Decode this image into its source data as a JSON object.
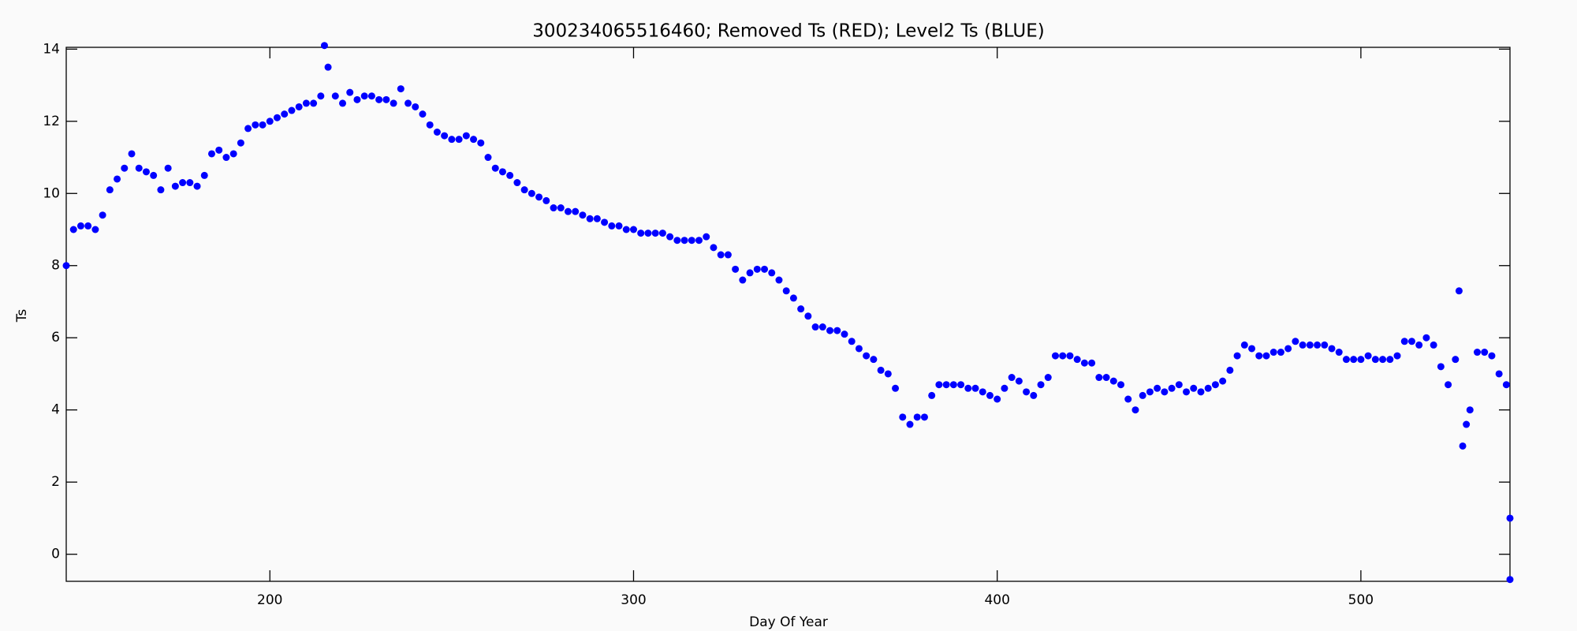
{
  "chart_data": {
    "type": "scatter",
    "title": "300234065516460; Removed Ts (RED); Level2 Ts (BLUE)",
    "x_label": "Day Of Year",
    "y_label": "Ts",
    "color": "#0000ff",
    "xlim": [
      144,
      541
    ],
    "ylim": [
      -0.75,
      14.05
    ],
    "xticks": [
      200,
      300,
      400,
      500
    ],
    "yticks": [
      0,
      2,
      4,
      6,
      8,
      10,
      12,
      14
    ],
    "x": [
      144,
      146,
      148,
      150,
      152,
      154,
      156,
      158,
      160,
      162,
      164,
      166,
      168,
      170,
      172,
      174,
      176,
      178,
      180,
      182,
      184,
      186,
      188,
      190,
      192,
      194,
      196,
      198,
      200,
      202,
      204,
      206,
      208,
      210,
      212,
      214,
      215,
      216,
      218,
      220,
      222,
      224,
      226,
      228,
      230,
      232,
      234,
      236,
      238,
      240,
      242,
      244,
      246,
      248,
      250,
      252,
      254,
      256,
      258,
      260,
      262,
      264,
      266,
      268,
      270,
      272,
      274,
      276,
      278,
      280,
      282,
      284,
      286,
      288,
      290,
      292,
      294,
      296,
      298,
      300,
      302,
      304,
      306,
      308,
      310,
      312,
      314,
      316,
      318,
      320,
      322,
      324,
      326,
      328,
      330,
      332,
      334,
      336,
      338,
      340,
      342,
      344,
      346,
      348,
      350,
      352,
      354,
      356,
      358,
      360,
      362,
      364,
      366,
      368,
      370,
      372,
      374,
      376,
      378,
      380,
      382,
      384,
      386,
      388,
      390,
      392,
      394,
      396,
      398,
      400,
      402,
      404,
      406,
      408,
      410,
      412,
      414,
      416,
      418,
      420,
      422,
      424,
      426,
      428,
      430,
      432,
      434,
      436,
      438,
      440,
      442,
      444,
      446,
      448,
      450,
      452,
      454,
      456,
      458,
      460,
      462,
      464,
      466,
      468,
      470,
      472,
      474,
      476,
      478,
      480,
      482,
      484,
      486,
      488,
      490,
      492,
      494,
      496,
      498,
      500,
      502,
      504,
      506,
      508,
      510,
      512,
      514,
      516,
      518,
      520,
      522,
      524,
      526,
      527,
      528,
      529,
      530,
      532,
      534,
      536,
      538,
      540,
      541,
      541
    ],
    "y": [
      8.0,
      9.0,
      9.1,
      9.1,
      9.0,
      9.4,
      10.1,
      10.4,
      10.7,
      11.1,
      10.7,
      10.6,
      10.5,
      10.1,
      10.7,
      10.2,
      10.3,
      10.3,
      10.2,
      10.5,
      11.1,
      11.2,
      11.0,
      11.1,
      11.4,
      11.8,
      11.9,
      11.9,
      12.0,
      12.1,
      12.2,
      12.3,
      12.4,
      12.5,
      12.5,
      12.7,
      14.1,
      13.5,
      12.7,
      12.5,
      12.8,
      12.6,
      12.7,
      12.7,
      12.6,
      12.6,
      12.5,
      12.9,
      12.5,
      12.4,
      12.2,
      11.9,
      11.7,
      11.6,
      11.5,
      11.5,
      11.6,
      11.5,
      11.4,
      11.0,
      10.7,
      10.6,
      10.5,
      10.3,
      10.1,
      10.0,
      9.9,
      9.8,
      9.6,
      9.6,
      9.5,
      9.5,
      9.4,
      9.3,
      9.3,
      9.2,
      9.1,
      9.1,
      9.0,
      9.0,
      8.9,
      8.9,
      8.9,
      8.9,
      8.8,
      8.7,
      8.7,
      8.7,
      8.7,
      8.8,
      8.5,
      8.3,
      8.3,
      7.9,
      7.6,
      7.8,
      7.9,
      7.9,
      7.8,
      7.6,
      7.3,
      7.1,
      6.8,
      6.6,
      6.3,
      6.3,
      6.2,
      6.2,
      6.1,
      5.9,
      5.7,
      5.5,
      5.4,
      5.1,
      5.0,
      4.6,
      3.8,
      3.6,
      3.8,
      3.8,
      4.4,
      4.7,
      4.7,
      4.7,
      4.7,
      4.6,
      4.6,
      4.5,
      4.4,
      4.3,
      4.6,
      4.9,
      4.8,
      4.5,
      4.4,
      4.7,
      4.9,
      5.5,
      5.5,
      5.5,
      5.4,
      5.3,
      5.3,
      4.9,
      4.9,
      4.8,
      4.7,
      4.3,
      4.0,
      4.4,
      4.5,
      4.6,
      4.5,
      4.6,
      4.7,
      4.5,
      4.6,
      4.5,
      4.6,
      4.7,
      4.8,
      5.1,
      5.5,
      5.8,
      5.7,
      5.5,
      5.5,
      5.6,
      5.6,
      5.7,
      5.9,
      5.8,
      5.8,
      5.8,
      5.8,
      5.7,
      5.6,
      5.4,
      5.4,
      5.4,
      5.5,
      5.4,
      5.4,
      5.4,
      5.5,
      5.9,
      5.9,
      5.8,
      6.0,
      5.8,
      5.2,
      4.7,
      5.4,
      7.3,
      3.0,
      3.6,
      4.0,
      5.6,
      5.6,
      5.5,
      5.0,
      4.7,
      1.0,
      -0.7
    ]
  }
}
